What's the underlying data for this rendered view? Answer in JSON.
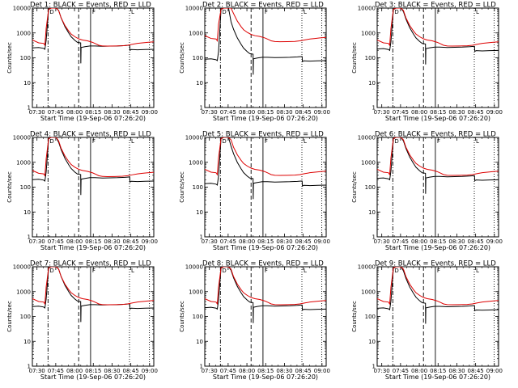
{
  "chart_data": {
    "type": "line",
    "x_tick_labels": [
      "07:30",
      "07:45",
      "08:00",
      "08:15",
      "08:30",
      "08:45",
      "09:00"
    ],
    "x_range_minutes_since_0726": [
      0,
      97
    ],
    "y_scale": "log",
    "ylim": [
      1,
      10000
    ],
    "y_tick_labels": [
      "1",
      "10",
      "100",
      "1000",
      "10000"
    ],
    "ylabel": "Counts/sec",
    "xlabel": "Start Time (19-Sep-06 07:26:20)",
    "series_names": [
      "Events",
      "LLD"
    ],
    "series_colors": {
      "Events": "#000000",
      "LLD": "#dd0000"
    },
    "marker_labels": [
      "D",
      "F",
      "L"
    ],
    "panels": [
      {
        "title": "Det 1:  BLACK = Events, RED = LLD"
      },
      {
        "title": "Det 2:  BLACK = Events, RED = LLD"
      },
      {
        "title": "Det 3:  BLACK = Events, RED = LLD"
      },
      {
        "title": "Det 4:  BLACK = Events, RED = LLD"
      },
      {
        "title": "Det 5:  BLACK = Events, RED = LLD"
      },
      {
        "title": "Det 6:  BLACK = Events, RED = LLD"
      },
      {
        "title": "Det 7:  BLACK = Events, RED = LLD"
      },
      {
        "title": "Det 8:  BLACK = Events, RED = LLD"
      },
      {
        "title": "Det 9:  BLACK = Events, RED = LLD"
      }
    ],
    "series_shape": {
      "lld": [
        [
          0,
          520
        ],
        [
          5,
          400
        ],
        [
          9,
          380
        ],
        [
          10,
          320
        ],
        [
          11,
          1500
        ],
        [
          13,
          9000
        ],
        [
          15,
          10000
        ],
        [
          19,
          10000
        ],
        [
          21,
          8000
        ],
        [
          23,
          4000
        ],
        [
          26,
          2000
        ],
        [
          29,
          1200
        ],
        [
          31,
          900
        ],
        [
          34,
          700
        ],
        [
          37,
          580
        ],
        [
          40,
          520
        ],
        [
          44,
          480
        ],
        [
          48,
          420
        ],
        [
          51,
          360
        ],
        [
          53,
          320
        ],
        [
          56,
          300
        ],
        [
          60,
          295
        ],
        [
          66,
          298
        ],
        [
          72,
          305
        ],
        [
          76,
          320
        ],
        [
          80,
          350
        ],
        [
          84,
          380
        ],
        [
          88,
          400
        ],
        [
          92,
          420
        ],
        [
          97,
          440
        ]
      ],
      "events": [
        [
          0,
          250
        ],
        [
          5,
          260
        ],
        [
          9,
          240
        ],
        [
          10,
          220
        ],
        [
          11,
          500
        ],
        [
          13,
          9000
        ],
        [
          15,
          10000
        ],
        [
          19,
          10000
        ],
        [
          21,
          8000
        ],
        [
          23,
          4000
        ],
        [
          26,
          1800
        ],
        [
          29,
          1000
        ],
        [
          31,
          700
        ],
        [
          34,
          500
        ],
        [
          36,
          420
        ],
        [
          38.6,
          400
        ],
        [
          38.7,
          60
        ],
        [
          38.9,
          260
        ],
        [
          42,
          280
        ],
        [
          46,
          300
        ],
        [
          50,
          300
        ],
        [
          56,
          290
        ],
        [
          62,
          295
        ],
        [
          68,
          300
        ],
        [
          74,
          310
        ],
        [
          77,
          320
        ],
        [
          77.8,
          320
        ],
        [
          78,
          200
        ],
        [
          79,
          215
        ],
        [
          84,
          210
        ],
        [
          90,
          215
        ],
        [
          97,
          220
        ]
      ]
    },
    "detector_scales": [
      {
        "lld": 1.0,
        "events": 1.0
      },
      {
        "lld": 1.5,
        "events": 0.35
      },
      {
        "lld": 1.0,
        "events": 0.9
      },
      {
        "lld": 0.9,
        "events": 0.8
      },
      {
        "lld": 1.0,
        "events": 0.55
      },
      {
        "lld": 1.0,
        "events": 0.9
      },
      {
        "lld": 1.0,
        "events": 1.0
      },
      {
        "lld": 1.0,
        "events": 0.9
      },
      {
        "lld": 1.0,
        "events": 0.85
      }
    ],
    "vertical_markers": [
      {
        "x": 12.5,
        "style": "dash-dot"
      },
      {
        "x": 37.0,
        "style": "dashed"
      },
      {
        "x": 46.5,
        "style": "solid"
      },
      {
        "x": 77.6,
        "style": "dotted"
      },
      {
        "x": 93.5,
        "style": "dotted"
      }
    ]
  }
}
